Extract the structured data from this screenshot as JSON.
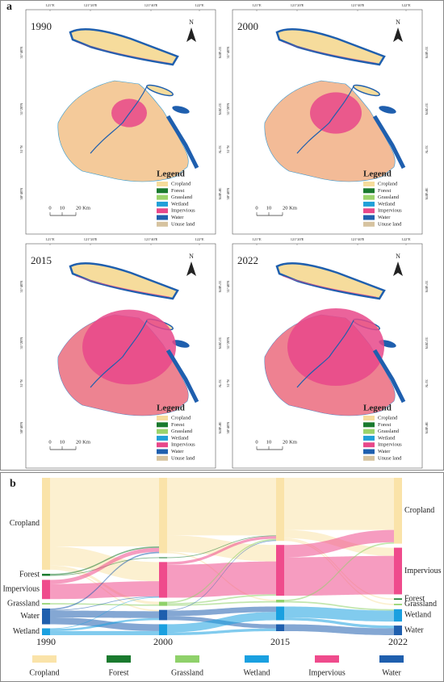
{
  "panel_a": {
    "label": "a",
    "maps": [
      {
        "year": "1990"
      },
      {
        "year": "2000"
      },
      {
        "year": "2015"
      },
      {
        "year": "2022"
      }
    ],
    "north": "N",
    "legend_title": "Legend",
    "legend": [
      {
        "name": "Cropland",
        "color": "#f6dc9c"
      },
      {
        "name": "Forest",
        "color": "#1a7a2e"
      },
      {
        "name": "Grassland",
        "color": "#9bd36b"
      },
      {
        "name": "Wetland",
        "color": "#22a0d8"
      },
      {
        "name": "Impervious",
        "color": "#e8488a"
      },
      {
        "name": "Water",
        "color": "#1f5fae"
      },
      {
        "name": "Unuse land",
        "color": "#d6c3a0"
      }
    ],
    "scale_labels": [
      "0",
      "10",
      "20 Km"
    ],
    "top_ticks": [
      "121°E",
      "121°20'E",
      "121°40'E",
      "122°E"
    ],
    "left_ticks": [
      "31°40'N",
      "31°20'N",
      "31°N",
      "30°40'N"
    ]
  },
  "panel_b": {
    "label": "b",
    "type": "sankey",
    "classes": [
      {
        "name": "Cropland",
        "color": "#fae3a9"
      },
      {
        "name": "Forest",
        "color": "#1a7a2e"
      },
      {
        "name": "Grassland",
        "color": "#8fd16a"
      },
      {
        "name": "Wetland",
        "color": "#1aa0e0"
      },
      {
        "name": "Impervious",
        "color": "#ef4b8c"
      },
      {
        "name": "Water",
        "color": "#1f5fae"
      }
    ],
    "columns": [
      {
        "year": "1990",
        "nodes": [
          {
            "class": "Cropland",
            "value": 67
          },
          {
            "class": "Forest",
            "value": 1.5
          },
          {
            "class": "Impervious",
            "value": 14
          },
          {
            "class": "Grassland",
            "value": 1
          },
          {
            "class": "Water",
            "value": 11.5
          },
          {
            "class": "Wetland",
            "value": 5
          }
        ]
      },
      {
        "year": "2000",
        "nodes": [
          {
            "class": "Cropland",
            "value": 55
          },
          {
            "class": "Forest",
            "value": 0.5
          },
          {
            "class": "Impervious",
            "value": 26
          },
          {
            "class": "Grassland",
            "value": 3
          },
          {
            "class": "Water",
            "value": 7.5
          },
          {
            "class": "Wetland",
            "value": 8
          }
        ]
      },
      {
        "year": "2015",
        "nodes": [
          {
            "class": "Cropland",
            "value": 46
          },
          {
            "class": "Impervious",
            "value": 37
          },
          {
            "class": "Grassland",
            "value": 2
          },
          {
            "class": "Wetland",
            "value": 10
          },
          {
            "class": "Water",
            "value": 5
          }
        ]
      },
      {
        "year": "2022",
        "nodes": [
          {
            "class": "Cropland",
            "value": 48
          },
          {
            "class": "Impervious",
            "value": 34
          },
          {
            "class": "Forest",
            "value": 1
          },
          {
            "class": "Grassland",
            "value": 1
          },
          {
            "class": "Wetland",
            "value": 9
          },
          {
            "class": "Water",
            "value": 7
          }
        ]
      }
    ],
    "flows": [
      [
        {
          "from": "Cropland",
          "to": "Cropland",
          "value": 50
        },
        {
          "from": "Cropland",
          "to": "Impervious",
          "value": 14
        },
        {
          "from": "Cropland",
          "to": "Grassland",
          "value": 2
        },
        {
          "from": "Cropland",
          "to": "Water",
          "value": 1
        },
        {
          "from": "Forest",
          "to": "Forest",
          "value": 0.5
        },
        {
          "from": "Forest",
          "to": "Cropland",
          "value": 1
        },
        {
          "from": "Impervious",
          "to": "Impervious",
          "value": 11
        },
        {
          "from": "Impervious",
          "to": "Cropland",
          "value": 3
        },
        {
          "from": "Grassland",
          "to": "Grassland",
          "value": 1
        },
        {
          "from": "Water",
          "to": "Water",
          "value": 5
        },
        {
          "from": "Water",
          "to": "Wetland",
          "value": 5
        },
        {
          "from": "Water",
          "to": "Cropland",
          "value": 1
        },
        {
          "from": "Water",
          "to": "Impervious",
          "value": 0.5
        },
        {
          "from": "Wetland",
          "to": "Wetland",
          "value": 3
        },
        {
          "from": "Wetland",
          "to": "Water",
          "value": 1.5
        },
        {
          "from": "Wetland",
          "to": "Impervious",
          "value": 0.5
        }
      ],
      [
        {
          "from": "Cropland",
          "to": "Cropland",
          "value": 42
        },
        {
          "from": "Cropland",
          "to": "Impervious",
          "value": 12
        },
        {
          "from": "Cropland",
          "to": "Grassland",
          "value": 1
        },
        {
          "from": "Forest",
          "to": "Cropland",
          "value": 0.5
        },
        {
          "from": "Impervious",
          "to": "Impervious",
          "value": 24
        },
        {
          "from": "Impervious",
          "to": "Cropland",
          "value": 2
        },
        {
          "from": "Grassland",
          "to": "Grassland",
          "value": 1
        },
        {
          "from": "Grassland",
          "to": "Impervious",
          "value": 1
        },
        {
          "from": "Grassland",
          "to": "Cropland",
          "value": 1
        },
        {
          "from": "Water",
          "to": "Wetland",
          "value": 4
        },
        {
          "from": "Water",
          "to": "Water",
          "value": 3
        },
        {
          "from": "Water",
          "to": "Cropland",
          "value": 0.5
        },
        {
          "from": "Wetland",
          "to": "Wetland",
          "value": 6
        },
        {
          "from": "Wetland",
          "to": "Water",
          "value": 2
        }
      ],
      [
        {
          "from": "Cropland",
          "to": "Cropland",
          "value": 38
        },
        {
          "from": "Cropland",
          "to": "Impervious",
          "value": 6
        },
        {
          "from": "Cropland",
          "to": "Forest",
          "value": 1
        },
        {
          "from": "Cropland",
          "to": "Grassland",
          "value": 1
        },
        {
          "from": "Impervious",
          "to": "Impervious",
          "value": 28
        },
        {
          "from": "Impervious",
          "to": "Cropland",
          "value": 9
        },
        {
          "from": "Grassland",
          "to": "Cropland",
          "value": 1
        },
        {
          "from": "Grassland",
          "to": "Wetland",
          "value": 1
        },
        {
          "from": "Wetland",
          "to": "Wetland",
          "value": 8
        },
        {
          "from": "Wetland",
          "to": "Water",
          "value": 2
        },
        {
          "from": "Water",
          "to": "Water",
          "value": 5
        }
      ]
    ]
  }
}
